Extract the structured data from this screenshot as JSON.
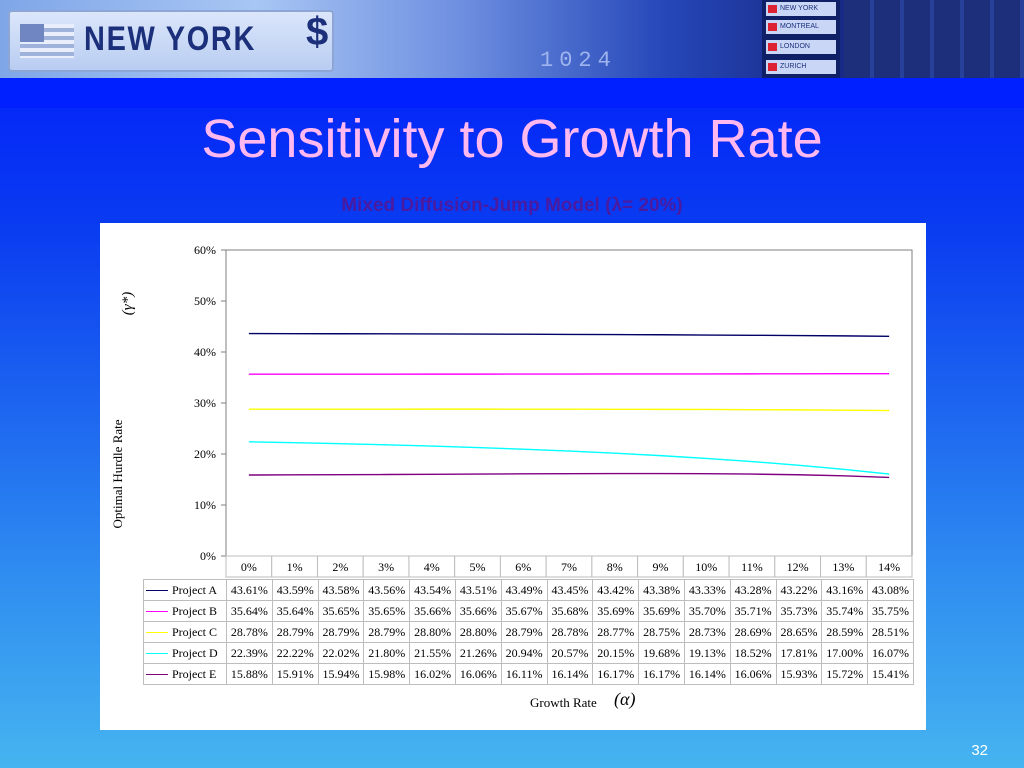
{
  "banner": {
    "city_sign": "NEW YORK",
    "currency_symbol": "$",
    "ticker_digits": "1024",
    "board_cities": [
      "NEW YORK",
      "MONTREAL",
      "LONDON",
      "ZURICH"
    ]
  },
  "slide": {
    "title": "Sensitivity to Growth Rate",
    "chart_title": "Mixed Diffusion-Jump Model (λ= 20%)",
    "page_number": "32"
  },
  "chart_data": {
    "type": "line",
    "title": "Mixed Diffusion-Jump Model (λ= 20%)",
    "ylabel": "Optimal Hurdle Rate",
    "ylabel_symbol": "(γ*)",
    "xlabel": "Growth Rate",
    "xlabel_symbol": "(α)",
    "ylim": [
      0,
      60
    ],
    "yticks": [
      "0%",
      "10%",
      "20%",
      "30%",
      "40%",
      "50%",
      "60%"
    ],
    "yticks_values": [
      0,
      10,
      20,
      30,
      40,
      50,
      60
    ],
    "categories": [
      "0%",
      "1%",
      "2%",
      "3%",
      "4%",
      "5%",
      "6%",
      "7%",
      "8%",
      "9%",
      "10%",
      "11%",
      "12%",
      "13%",
      "14%"
    ],
    "grid": false,
    "legend": "table-below",
    "series": [
      {
        "name": "Project A",
        "color": "#000066",
        "values": [
          43.61,
          43.59,
          43.58,
          43.56,
          43.54,
          43.51,
          43.49,
          43.45,
          43.42,
          43.38,
          43.33,
          43.28,
          43.22,
          43.16,
          43.08
        ],
        "labels": [
          "43.61%",
          "43.59%",
          "43.58%",
          "43.56%",
          "43.54%",
          "43.51%",
          "43.49%",
          "43.45%",
          "43.42%",
          "43.38%",
          "43.33%",
          "43.28%",
          "43.22%",
          "43.16%",
          "43.08%"
        ]
      },
      {
        "name": "Project B",
        "color": "#ff00ff",
        "values": [
          35.64,
          35.64,
          35.65,
          35.65,
          35.66,
          35.66,
          35.67,
          35.68,
          35.69,
          35.69,
          35.7,
          35.71,
          35.73,
          35.74,
          35.75
        ],
        "labels": [
          "35.64%",
          "35.64%",
          "35.65%",
          "35.65%",
          "35.66%",
          "35.66%",
          "35.67%",
          "35.68%",
          "35.69%",
          "35.69%",
          "35.70%",
          "35.71%",
          "35.73%",
          "35.74%",
          "35.75%"
        ]
      },
      {
        "name": "Project C",
        "color": "#ffff00",
        "values": [
          28.78,
          28.79,
          28.79,
          28.79,
          28.8,
          28.8,
          28.79,
          28.78,
          28.77,
          28.75,
          28.73,
          28.69,
          28.65,
          28.59,
          28.51
        ],
        "labels": [
          "28.78%",
          "28.79%",
          "28.79%",
          "28.79%",
          "28.80%",
          "28.80%",
          "28.79%",
          "28.78%",
          "28.77%",
          "28.75%",
          "28.73%",
          "28.69%",
          "28.65%",
          "28.59%",
          "28.51%"
        ]
      },
      {
        "name": "Project D",
        "color": "#00ffff",
        "values": [
          22.39,
          22.22,
          22.02,
          21.8,
          21.55,
          21.26,
          20.94,
          20.57,
          20.15,
          19.68,
          19.13,
          18.52,
          17.81,
          17.0,
          16.07
        ],
        "labels": [
          "22.39%",
          "22.22%",
          "22.02%",
          "21.80%",
          "21.55%",
          "21.26%",
          "20.94%",
          "20.57%",
          "20.15%",
          "19.68%",
          "19.13%",
          "18.52%",
          "17.81%",
          "17.00%",
          "16.07%"
        ]
      },
      {
        "name": "Project E",
        "color": "#800080",
        "values": [
          15.88,
          15.91,
          15.94,
          15.98,
          16.02,
          16.06,
          16.11,
          16.14,
          16.17,
          16.17,
          16.14,
          16.06,
          15.93,
          15.72,
          15.41
        ],
        "labels": [
          "15.88%",
          "15.91%",
          "15.94%",
          "15.98%",
          "16.02%",
          "16.06%",
          "16.11%",
          "16.14%",
          "16.17%",
          "16.17%",
          "16.14%",
          "16.06%",
          "15.93%",
          "15.72%",
          "15.41%"
        ]
      }
    ]
  }
}
